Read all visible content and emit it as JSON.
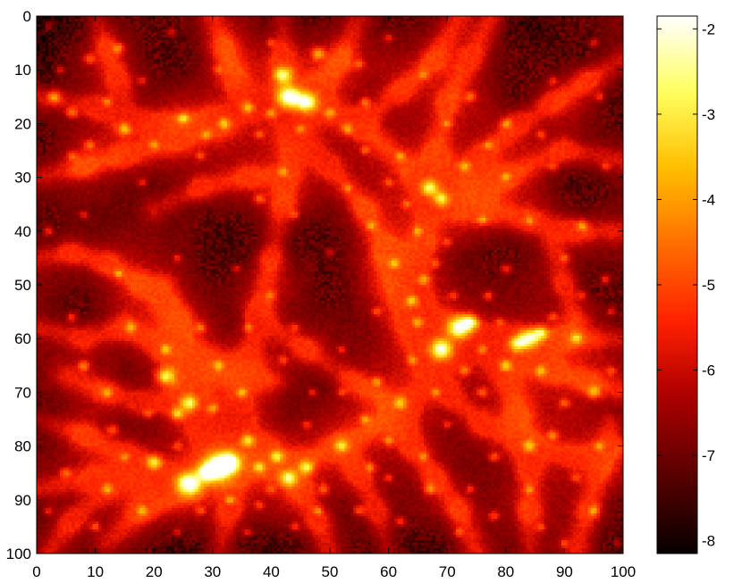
{
  "chart_data": {
    "type": "heatmap",
    "title": "",
    "xlabel": "",
    "ylabel": "",
    "xlim": [
      0,
      100
    ],
    "ylim": [
      0,
      100
    ],
    "y_axis_direction": "top-to-bottom",
    "x_ticks": [
      "0",
      "10",
      "20",
      "30",
      "40",
      "50",
      "60",
      "70",
      "80",
      "90",
      "100"
    ],
    "y_ticks": [
      "0",
      "10",
      "20",
      "30",
      "40",
      "50",
      "60",
      "70",
      "80",
      "90",
      "100"
    ],
    "colormap": "hot",
    "grid": false,
    "colorbar": {
      "position": "right",
      "range": [
        -8.15,
        -1.85
      ],
      "ticks": [
        "-2",
        "-3",
        "-4",
        "-5",
        "-6",
        "-7",
        "-8"
      ],
      "tick_values": [
        -2,
        -3,
        -4,
        -5,
        -6,
        -7,
        -8
      ],
      "colors": [
        "#0a0000",
        "#5a0000",
        "#b40000",
        "#ff2a00",
        "#ff7a00",
        "#ffc800",
        "#ffff66",
        "#ffffff"
      ]
    },
    "description_values": {
      "void_level": -7.8,
      "filament_level": -6.0,
      "halo_peak_level": -3.5
    },
    "halos": [
      [
        43,
        15,
        3.0
      ],
      [
        46,
        16,
        2.6
      ],
      [
        42,
        11,
        2.2
      ],
      [
        48,
        7,
        1.6
      ],
      [
        31,
        84,
        3.4
      ],
      [
        26,
        87,
        3.0
      ],
      [
        33,
        83,
        2.4
      ],
      [
        29,
        85,
        2.2
      ],
      [
        72,
        58,
        2.8
      ],
      [
        69,
        62,
        2.6
      ],
      [
        74,
        57,
        2.0
      ],
      [
        84,
        60,
        2.4
      ],
      [
        82,
        61,
        2.0
      ],
      [
        86,
        59,
        1.8
      ],
      [
        67,
        32,
        2.0
      ],
      [
        69,
        34,
        1.8
      ],
      [
        22,
        67,
        2.2
      ],
      [
        26,
        72,
        2.0
      ],
      [
        24,
        74,
        1.6
      ],
      [
        20,
        83,
        1.8
      ],
      [
        43,
        86,
        2.0
      ],
      [
        46,
        84,
        1.8
      ],
      [
        41,
        82,
        1.6
      ],
      [
        52,
        80,
        1.6
      ],
      [
        36,
        79,
        1.6
      ],
      [
        38,
        84,
        1.4
      ],
      [
        3,
        15,
        1.6
      ],
      [
        6,
        18,
        1.4
      ],
      [
        9,
        8,
        1.2
      ],
      [
        14,
        6,
        1.2
      ],
      [
        15,
        21,
        1.4
      ],
      [
        25,
        19,
        1.4
      ],
      [
        32,
        20,
        1.4
      ],
      [
        36,
        17,
        1.4
      ],
      [
        40,
        18,
        1.2
      ],
      [
        50,
        18,
        1.2
      ],
      [
        53,
        21,
        1.2
      ],
      [
        56,
        16,
        1.2
      ],
      [
        60,
        4,
        1.0
      ],
      [
        66,
        11,
        1.0
      ],
      [
        74,
        15,
        1.2
      ],
      [
        80,
        20,
        1.2
      ],
      [
        88,
        12,
        1.0
      ],
      [
        95,
        5,
        1.0
      ],
      [
        9,
        24,
        1.2
      ],
      [
        6,
        26,
        1.0
      ],
      [
        2,
        40,
        1.2
      ],
      [
        18,
        31,
        1.0
      ],
      [
        28,
        26,
        1.0
      ],
      [
        38,
        34,
        1.2
      ],
      [
        42,
        29,
        1.0
      ],
      [
        44,
        37,
        1.0
      ],
      [
        53,
        32,
        1.0
      ],
      [
        57,
        39,
        1.0
      ],
      [
        61,
        46,
        1.2
      ],
      [
        64,
        53,
        1.4
      ],
      [
        66,
        49,
        1.2
      ],
      [
        65,
        57,
        1.2
      ],
      [
        77,
        52,
        1.2
      ],
      [
        80,
        47,
        1.2
      ],
      [
        93,
        39,
        1.2
      ],
      [
        97,
        49,
        1.2
      ],
      [
        92,
        60,
        1.4
      ],
      [
        95,
        70,
        1.4
      ],
      [
        98,
        55,
        1.0
      ],
      [
        84,
        80,
        1.4
      ],
      [
        88,
        78,
        1.2
      ],
      [
        78,
        82,
        1.2
      ],
      [
        76,
        70,
        1.2
      ],
      [
        80,
        65,
        1.4
      ],
      [
        73,
        66,
        1.2
      ],
      [
        62,
        72,
        1.4
      ],
      [
        58,
        68,
        1.2
      ],
      [
        56,
        75,
        1.2
      ],
      [
        60,
        79,
        1.2
      ],
      [
        49,
        88,
        1.2
      ],
      [
        55,
        92,
        1.2
      ],
      [
        62,
        94,
        1.2
      ],
      [
        67,
        88,
        1.2
      ],
      [
        72,
        96,
        1.0
      ],
      [
        78,
        93,
        1.2
      ],
      [
        86,
        95,
        1.0
      ],
      [
        95,
        92,
        1.2
      ],
      [
        92,
        86,
        1.0
      ],
      [
        13,
        77,
        1.2
      ],
      [
        8,
        65,
        1.4
      ],
      [
        12,
        70,
        1.2
      ],
      [
        6,
        56,
        1.2
      ],
      [
        16,
        58,
        1.2
      ],
      [
        22,
        62,
        1.2
      ],
      [
        31,
        65,
        1.2
      ],
      [
        35,
        70,
        1.2
      ],
      [
        28,
        58,
        1.2
      ],
      [
        5,
        85,
        1.2
      ],
      [
        2,
        92,
        1.0
      ],
      [
        10,
        95,
        1.2
      ],
      [
        18,
        92,
        1.2
      ],
      [
        24,
        96,
        1.0
      ],
      [
        38,
        91,
        1.0
      ],
      [
        44,
        95,
        1.0
      ],
      [
        36,
        96,
        1.0
      ],
      [
        12,
        88,
        1.2
      ],
      [
        2,
        2,
        1.0
      ],
      [
        23,
        3,
        1.0
      ],
      [
        31,
        10,
        1.0
      ],
      [
        40,
        5,
        1.0
      ],
      [
        55,
        9,
        1.0
      ],
      [
        73,
        28,
        1.2
      ],
      [
        62,
        26,
        1.0
      ],
      [
        56,
        25,
        1.0
      ],
      [
        50,
        44,
        1.0
      ],
      [
        40,
        52,
        1.0
      ],
      [
        44,
        58,
        1.0
      ],
      [
        34,
        47,
        1.0
      ],
      [
        52,
        62,
        1.0
      ],
      [
        47,
        70,
        1.0
      ],
      [
        42,
        64,
        1.0
      ],
      [
        88,
        28,
        1.0
      ],
      [
        97,
        28,
        1.0
      ],
      [
        90,
        45,
        1.0
      ],
      [
        84,
        38,
        1.0
      ],
      [
        76,
        38,
        1.0
      ],
      [
        80,
        30,
        1.0
      ],
      [
        98,
        66,
        1.0
      ],
      [
        90,
        72,
        1.2
      ],
      [
        86,
        66,
        1.2
      ],
      [
        70,
        76,
        1.0
      ],
      [
        66,
        82,
        1.0
      ],
      [
        96,
        80,
        1.0
      ],
      [
        60,
        86,
        1.0
      ],
      [
        14,
        48,
        1.0
      ],
      [
        24,
        45,
        1.0
      ],
      [
        8,
        37,
        1.0
      ],
      [
        18,
        12,
        1.0
      ],
      [
        84,
        88,
        1.0
      ],
      [
        90,
        98,
        1.0
      ],
      [
        99,
        98,
        1.0
      ],
      [
        74,
        88,
        1.0
      ],
      [
        46,
        76,
        1.0
      ],
      [
        52,
        70,
        1.0
      ],
      [
        70,
        42,
        1.0
      ],
      [
        58,
        55,
        1.0
      ],
      [
        36,
        58,
        1.0
      ],
      [
        30,
        73,
        1.2
      ],
      [
        19,
        74,
        1.0
      ],
      [
        15,
        82,
        1.0
      ],
      [
        24,
        80,
        1.0
      ],
      [
        33,
        90,
        1.0
      ],
      [
        28,
        92,
        1.0
      ],
      [
        40,
        88,
        1.0
      ],
      [
        48,
        92,
        1.0
      ],
      [
        57,
        84,
        1.0
      ],
      [
        64,
        64,
        1.0
      ],
      [
        68,
        70,
        1.0
      ],
      [
        76,
        62,
        1.0
      ],
      [
        88,
        56,
        1.0
      ],
      [
        93,
        52,
        1.0
      ],
      [
        79,
        57,
        1.0
      ],
      [
        71,
        52,
        1.0
      ],
      [
        68,
        46,
        1.0
      ],
      [
        65,
        40,
        1.0
      ],
      [
        63,
        35,
        1.0
      ],
      [
        60,
        31,
        1.0
      ],
      [
        45,
        21,
        1.0
      ],
      [
        38,
        22,
        1.0
      ],
      [
        29,
        22,
        1.0
      ],
      [
        20,
        24,
        1.0
      ],
      [
        12,
        16,
        1.0
      ],
      [
        4,
        10,
        1.0
      ],
      [
        96,
        15,
        1.0
      ],
      [
        86,
        22,
        1.0
      ],
      [
        77,
        24,
        1.0
      ],
      [
        70,
        20,
        1.0
      ]
    ],
    "filaments": [
      [
        [
          0,
          15
        ],
        [
          10,
          17
        ],
        [
          20,
          20
        ],
        [
          30,
          19
        ],
        [
          40,
          16
        ],
        [
          46,
          16
        ],
        [
          55,
          20
        ],
        [
          65,
          30
        ],
        [
          72,
          35
        ],
        [
          80,
          30
        ],
        [
          90,
          25
        ],
        [
          100,
          27
        ]
      ],
      [
        [
          0,
          88
        ],
        [
          10,
          86
        ],
        [
          20,
          86
        ],
        [
          30,
          84
        ],
        [
          42,
          84
        ],
        [
          52,
          80
        ],
        [
          62,
          74
        ],
        [
          70,
          63
        ],
        [
          80,
          61
        ],
        [
          90,
          60
        ],
        [
          100,
          60
        ]
      ],
      [
        [
          42,
          0
        ],
        [
          42,
          8
        ],
        [
          43,
          15
        ],
        [
          44,
          25
        ],
        [
          42,
          35
        ],
        [
          40,
          45
        ],
        [
          38,
          55
        ],
        [
          36,
          65
        ],
        [
          35,
          75
        ],
        [
          34,
          82
        ],
        [
          33,
          92
        ],
        [
          31,
          100
        ]
      ],
      [
        [
          55,
          0
        ],
        [
          52,
          8
        ],
        [
          48,
          14
        ],
        [
          46,
          17
        ]
      ],
      [
        [
          72,
          0
        ],
        [
          68,
          8
        ],
        [
          62,
          14
        ],
        [
          55,
          20
        ]
      ],
      [
        [
          0,
          30
        ],
        [
          8,
          28
        ],
        [
          15,
          26
        ],
        [
          24,
          23
        ],
        [
          32,
          21
        ]
      ],
      [
        [
          0,
          58
        ],
        [
          8,
          60
        ],
        [
          15,
          58
        ],
        [
          22,
          62
        ],
        [
          28,
          64
        ],
        [
          34,
          66
        ],
        [
          40,
          68
        ]
      ],
      [
        [
          5,
          67
        ],
        [
          12,
          70
        ],
        [
          18,
          72
        ],
        [
          25,
          72
        ],
        [
          32,
          76
        ],
        [
          40,
          80
        ]
      ],
      [
        [
          22,
          50
        ],
        [
          24,
          58
        ],
        [
          26,
          68
        ],
        [
          28,
          76
        ],
        [
          30,
          84
        ]
      ],
      [
        [
          12,
          98
        ],
        [
          18,
          92
        ],
        [
          26,
          88
        ],
        [
          30,
          84
        ]
      ],
      [
        [
          0,
          75
        ],
        [
          8,
          78
        ],
        [
          16,
          82
        ],
        [
          22,
          86
        ]
      ],
      [
        [
          60,
          100
        ],
        [
          58,
          92
        ],
        [
          55,
          85
        ],
        [
          52,
          80
        ]
      ],
      [
        [
          50,
          100
        ],
        [
          48,
          94
        ],
        [
          45,
          88
        ],
        [
          43,
          84
        ]
      ],
      [
        [
          75,
          100
        ],
        [
          72,
          92
        ],
        [
          68,
          86
        ],
        [
          64,
          80
        ],
        [
          62,
          74
        ]
      ],
      [
        [
          100,
          80
        ],
        [
          92,
          82
        ],
        [
          84,
          80
        ],
        [
          76,
          76
        ],
        [
          70,
          70
        ],
        [
          66,
          64
        ],
        [
          64,
          58
        ],
        [
          64,
          50
        ],
        [
          66,
          42
        ],
        [
          67,
          34
        ],
        [
          68,
          26
        ],
        [
          70,
          16
        ],
        [
          74,
          8
        ],
        [
          78,
          0
        ]
      ],
      [
        [
          100,
          40
        ],
        [
          92,
          40
        ],
        [
          84,
          38
        ],
        [
          76,
          36
        ],
        [
          70,
          34
        ]
      ],
      [
        [
          100,
          8
        ],
        [
          94,
          12
        ],
        [
          88,
          16
        ],
        [
          82,
          20
        ],
        [
          76,
          26
        ],
        [
          70,
          32
        ]
      ],
      [
        [
          100,
          70
        ],
        [
          94,
          68
        ],
        [
          88,
          66
        ],
        [
          82,
          63
        ],
        [
          76,
          60
        ],
        [
          72,
          58
        ]
      ],
      [
        [
          60,
          45
        ],
        [
          64,
          52
        ],
        [
          68,
          58
        ],
        [
          72,
          58
        ]
      ],
      [
        [
          44,
          22
        ],
        [
          50,
          28
        ],
        [
          56,
          36
        ],
        [
          60,
          44
        ],
        [
          62,
          50
        ],
        [
          64,
          56
        ]
      ],
      [
        [
          84,
          100
        ],
        [
          84,
          92
        ],
        [
          84,
          84
        ],
        [
          82,
          74
        ],
        [
          80,
          66
        ],
        [
          82,
          60
        ]
      ],
      [
        [
          92,
          100
        ],
        [
          94,
          92
        ],
        [
          96,
          84
        ],
        [
          98,
          76
        ]
      ],
      [
        [
          0,
          45
        ],
        [
          6,
          44
        ],
        [
          12,
          46
        ],
        [
          18,
          50
        ],
        [
          24,
          56
        ]
      ],
      [
        [
          30,
          0
        ],
        [
          32,
          6
        ],
        [
          34,
          12
        ],
        [
          36,
          17
        ]
      ],
      [
        [
          10,
          0
        ],
        [
          12,
          6
        ],
        [
          14,
          12
        ],
        [
          15,
          20
        ]
      ],
      [
        [
          38,
          56
        ],
        [
          46,
          62
        ],
        [
          54,
          68
        ],
        [
          62,
          73
        ]
      ],
      [
        [
          20,
          36
        ],
        [
          28,
          32
        ],
        [
          36,
          30
        ],
        [
          42,
          30
        ]
      ],
      [
        [
          88,
          42
        ],
        [
          90,
          50
        ],
        [
          92,
          56
        ]
      ],
      [
        [
          2,
          100
        ],
        [
          6,
          94
        ],
        [
          12,
          88
        ]
      ]
    ]
  }
}
